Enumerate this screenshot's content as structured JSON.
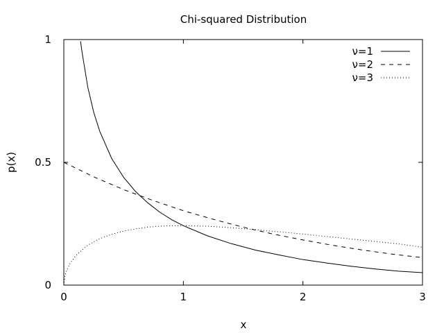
{
  "chart_data": {
    "type": "line",
    "title": "Chi-squared Distribution",
    "xlabel": "x",
    "ylabel": "p(x)",
    "xlim": [
      0,
      3
    ],
    "ylim": [
      0,
      1
    ],
    "xticks": [
      0,
      1,
      2,
      3
    ],
    "xtick_labels": [
      "0",
      "1",
      "2",
      "3"
    ],
    "yticks": [
      0,
      0.5,
      1
    ],
    "ytick_labels": [
      "0",
      "0.5",
      "1"
    ],
    "grid": false,
    "legend_position": "top-right",
    "series": [
      {
        "name": "ν=1",
        "style": "solid",
        "x": [
          0.14,
          0.15,
          0.2,
          0.25,
          0.3,
          0.4,
          0.5,
          0.6,
          0.7,
          0.8,
          0.9,
          1.0,
          1.2,
          1.4,
          1.6,
          1.8,
          2.0,
          2.2,
          2.4,
          2.6,
          2.8,
          3.0
        ],
        "y": [
          0.993,
          0.956,
          0.807,
          0.704,
          0.627,
          0.516,
          0.439,
          0.381,
          0.336,
          0.298,
          0.267,
          0.242,
          0.201,
          0.169,
          0.143,
          0.123,
          0.104,
          0.09,
          0.077,
          0.066,
          0.057,
          0.051
        ]
      },
      {
        "name": "ν=2",
        "style": "dashed",
        "x": [
          0,
          0.25,
          0.5,
          0.75,
          1.0,
          1.25,
          1.5,
          1.75,
          2.0,
          2.25,
          2.5,
          2.75,
          3.0
        ],
        "y": [
          0.5,
          0.441,
          0.389,
          0.344,
          0.303,
          0.268,
          0.236,
          0.208,
          0.184,
          0.162,
          0.143,
          0.126,
          0.112
        ]
      },
      {
        "name": "ν=3",
        "style": "dotted",
        "x": [
          0,
          0.01,
          0.02,
          0.05,
          0.1,
          0.2,
          0.3,
          0.4,
          0.5,
          0.6,
          0.7,
          0.8,
          0.9,
          1.0,
          1.2,
          1.4,
          1.6,
          1.8,
          2.0,
          2.2,
          2.4,
          2.6,
          2.8,
          3.0
        ],
        "y": [
          0,
          0.04,
          0.056,
          0.087,
          0.12,
          0.163,
          0.189,
          0.207,
          0.22,
          0.229,
          0.236,
          0.24,
          0.242,
          0.242,
          0.24,
          0.234,
          0.226,
          0.217,
          0.208,
          0.198,
          0.188,
          0.178,
          0.168,
          0.154
        ]
      }
    ]
  }
}
